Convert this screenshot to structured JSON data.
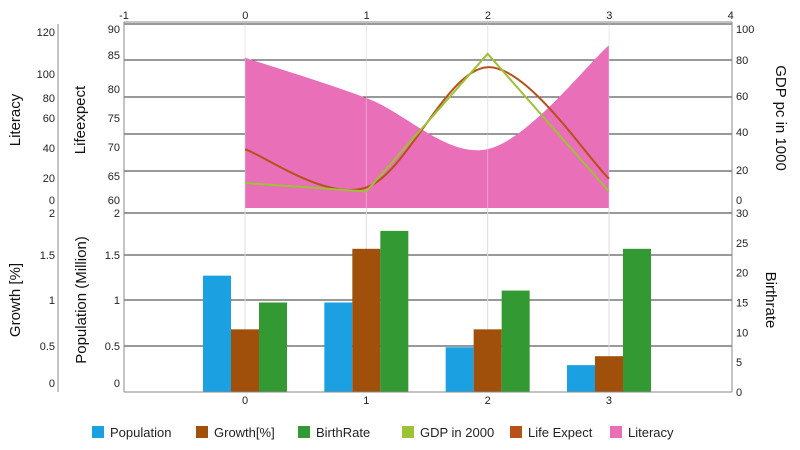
{
  "chart_data": {
    "type": "composite",
    "colors": {
      "population": "#1ba1e2",
      "growth": "#a0500a",
      "birthrate": "#339933",
      "gdp": "#9dc236",
      "life_expect": "#b8501a",
      "literacy": "#e86fb8"
    },
    "top_x_ticks": [
      "-1",
      "0",
      "1",
      "2",
      "3",
      "4"
    ],
    "bottom_x_ticks": [
      "0",
      "1",
      "2",
      "3"
    ],
    "x": [
      0,
      1,
      2,
      3
    ],
    "top_panel": {
      "literacy_axis": {
        "label": "Literacy",
        "ticks": [
          "0",
          "20",
          "40",
          "60",
          "80",
          "100",
          "120"
        ],
        "ylim": [
          0,
          120
        ]
      },
      "lifeexpect_axis": {
        "label": "Lifeexpect",
        "ticks": [
          "60",
          "65",
          "70",
          "75",
          "80",
          "85",
          "90"
        ],
        "ylim": [
          60,
          90
        ]
      },
      "gdp_axis": {
        "label": "GDP pc in 1000",
        "ticks": [
          "0",
          "20",
          "40",
          "60",
          "80",
          "100"
        ],
        "ylim": [
          0,
          100
        ]
      },
      "series": [
        {
          "name": "Literacy",
          "type": "area",
          "axis": "literacy",
          "values": [
            97,
            71,
            38,
            105
          ]
        },
        {
          "name": "Life Expect",
          "type": "spline",
          "axis": "lifeexpect",
          "values": [
            70,
            63.5,
            84,
            65
          ]
        },
        {
          "name": "GDP in 2000",
          "type": "line",
          "axis": "gdp",
          "values": [
            10,
            5,
            86,
            5
          ]
        }
      ]
    },
    "bottom_panel": {
      "growth_axis": {
        "label": "Growth [%]",
        "ticks": [
          "0",
          "0.5",
          "1",
          "1.5",
          "2"
        ],
        "ylim": [
          0,
          2
        ]
      },
      "population_axis": {
        "label": "Population (Million)",
        "ticks": [
          "0",
          "0.5",
          "1",
          "1.5",
          "2"
        ],
        "ylim": [
          0,
          2
        ]
      },
      "birthrate_axis": {
        "label": "Birthrate",
        "ticks": [
          "0",
          "5",
          "10",
          "15",
          "20",
          "25",
          "30"
        ],
        "ylim": [
          0,
          30
        ]
      },
      "series": [
        {
          "name": "Population",
          "type": "bar",
          "axis": "population",
          "values": [
            1.3,
            1.0,
            0.5,
            0.3
          ]
        },
        {
          "name": "Growth[%]",
          "type": "bar",
          "axis": "growth",
          "values": [
            0.7,
            1.6,
            0.7,
            0.4
          ]
        },
        {
          "name": "BirthRate",
          "type": "bar",
          "axis": "birthrate",
          "values": [
            15,
            27,
            17,
            24
          ]
        }
      ]
    },
    "legend": {
      "position": "bottom",
      "items": [
        {
          "label": "Population",
          "color": "#1ba1e2"
        },
        {
          "label": "Growth[%]",
          "color": "#a0500a"
        },
        {
          "label": "BirthRate",
          "color": "#339933"
        },
        {
          "label": "GDP in 2000",
          "color": "#9dc236"
        },
        {
          "label": "Life Expect",
          "color": "#b8501a"
        },
        {
          "label": "Literacy",
          "color": "#e86fb8"
        }
      ]
    }
  }
}
